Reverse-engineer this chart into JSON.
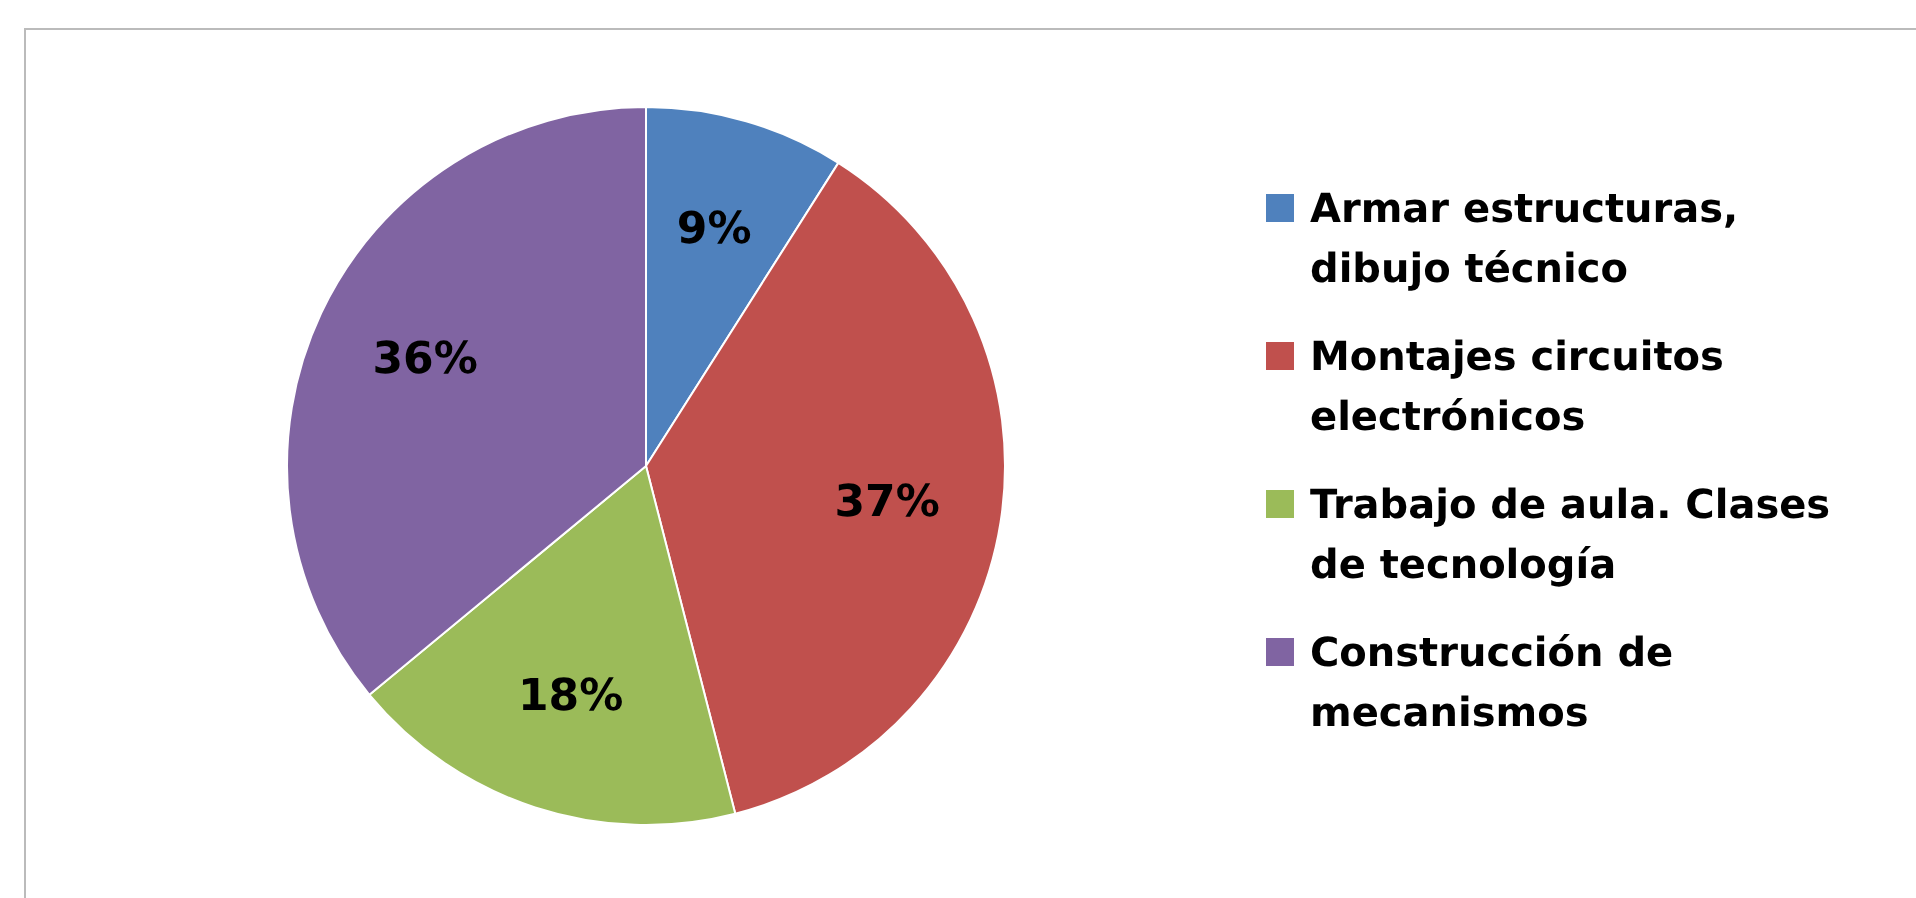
{
  "chart_data": {
    "type": "pie",
    "categories": [
      "Armar estructuras, dibujo técnico",
      "Montajes circuitos electrónicos",
      "Trabajo de aula. Clases de tecnología",
      "Construcción de mecanismos"
    ],
    "values": [
      9,
      37,
      18,
      36
    ],
    "value_labels": [
      "9%",
      "37%",
      "18%",
      "36%"
    ],
    "colors": [
      "#4f81bd",
      "#c0504d",
      "#9bbb59",
      "#8064a2"
    ],
    "legend": "right"
  }
}
